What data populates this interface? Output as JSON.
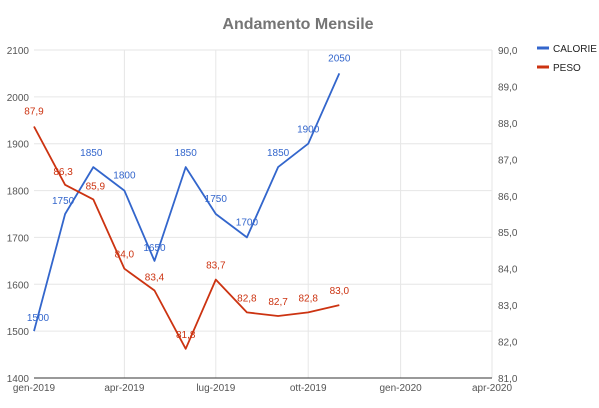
{
  "chart_data": {
    "type": "line",
    "title": "Andamento Mensile",
    "x_ticks": [
      "gen-2019",
      "apr-2019",
      "lug-2019",
      "ott-2019",
      "gen-2020",
      "apr-2020"
    ],
    "x_range": [
      "2019-01-01",
      "2020-04-01"
    ],
    "y_left": {
      "ticks": [
        "1400",
        "1500",
        "1600",
        "1700",
        "1800",
        "1900",
        "2000",
        "2100"
      ],
      "ylim": [
        1400,
        2100
      ]
    },
    "y_right": {
      "ticks": [
        "81,0",
        "82,0",
        "83,0",
        "84,0",
        "85,0",
        "86,0",
        "87,0",
        "88,0",
        "89,0",
        "90,0"
      ],
      "ylim": [
        81,
        90
      ]
    },
    "grid": true,
    "legend_position": "top-right",
    "series": [
      {
        "name": "CALORIE",
        "axis": "left",
        "color": "#3366cc",
        "x": [
          "2019-01-01",
          "2019-02-01",
          "2019-03-01",
          "2019-04-01",
          "2019-05-01",
          "2019-06-01",
          "2019-07-01",
          "2019-08-01",
          "2019-09-01",
          "2019-10-01",
          "2019-11-01"
        ],
        "values": [
          1500,
          1750,
          1850,
          1800,
          1650,
          1850,
          1750,
          1700,
          1850,
          1900,
          2050
        ],
        "labels": [
          "1500",
          "1750",
          "1850",
          "1800",
          "1650",
          "1850",
          "1750",
          "1700",
          "1850",
          "1900",
          "2050"
        ]
      },
      {
        "name": "PESO",
        "axis": "right",
        "color": "#cc3311",
        "x": [
          "2019-01-01",
          "2019-02-01",
          "2019-03-01",
          "2019-04-01",
          "2019-05-01",
          "2019-06-01",
          "2019-07-01",
          "2019-08-01",
          "2019-09-01",
          "2019-10-01",
          "2019-11-01"
        ],
        "values": [
          87.9,
          86.3,
          85.9,
          84.0,
          83.4,
          81.8,
          83.7,
          82.8,
          82.7,
          82.8,
          83.0
        ],
        "labels": [
          "87,9",
          "86,3",
          "85,9",
          "84,0",
          "83,4",
          "81,8",
          "83,7",
          "82,8",
          "82,7",
          "82,8",
          "83,0"
        ]
      }
    ]
  }
}
